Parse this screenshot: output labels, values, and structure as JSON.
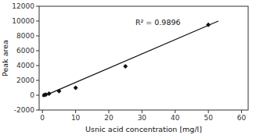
{
  "chart_data": {
    "type": "scatter",
    "x_label": "Usnic acid concentration [mg/l]",
    "y_label": "Peak area",
    "series": [
      {
        "type": "scatter",
        "marker": "diamond",
        "color": "#111111",
        "x": [
          0.5,
          1.0,
          2.0,
          5.0,
          10.0,
          25.0,
          50.0
        ],
        "values": [
          30,
          80,
          200,
          550,
          1000,
          3900,
          9500
        ]
      },
      {
        "type": "line",
        "line_style": "solid",
        "color": "#111111",
        "x": [
          0,
          53
        ],
        "values": [
          -200,
          10000
        ]
      }
    ],
    "annotations": [
      {
        "text": "R² = 0.9896",
        "x": 28,
        "y": 10200
      }
    ],
    "xlim": [
      -1,
      62
    ],
    "ylim": [
      -2000,
      12000
    ],
    "xticks": [
      0,
      10,
      20,
      30,
      40,
      50,
      60
    ],
    "yticks": [
      -2000,
      0,
      2000,
      4000,
      6000,
      8000,
      10000,
      12000
    ],
    "grid": false
  }
}
